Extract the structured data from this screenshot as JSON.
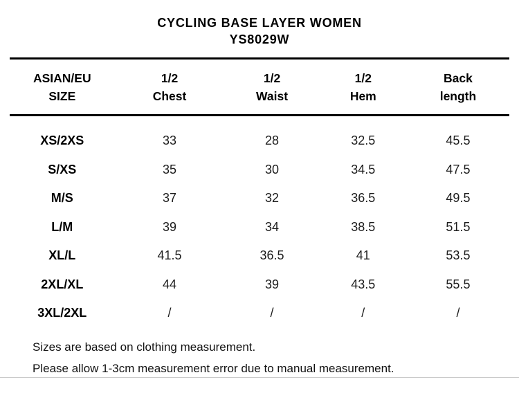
{
  "page": {
    "title": "CYCLING BASE LAYER WOMEN",
    "product_code": "YS8029W"
  },
  "table": {
    "headers": [
      {
        "line1": "ASIAN/EU",
        "line2": "SIZE"
      },
      {
        "line1": "1/2",
        "line2": "Chest"
      },
      {
        "line1": "1/2",
        "line2": "Waist"
      },
      {
        "line1": "1/2",
        "line2": "Hem"
      },
      {
        "line1": "Back",
        "line2": "length"
      }
    ],
    "rows": [
      {
        "size": "XS/2XS",
        "chest": "33",
        "waist": "28",
        "hem": "32.5",
        "back": "45.5"
      },
      {
        "size": "S/XS",
        "chest": "35",
        "waist": "30",
        "hem": "34.5",
        "back": "47.5"
      },
      {
        "size": "M/S",
        "chest": "37",
        "waist": "32",
        "hem": "36.5",
        "back": "49.5"
      },
      {
        "size": "L/M",
        "chest": "39",
        "waist": "34",
        "hem": "38.5",
        "back": "51.5"
      },
      {
        "size": "XL/L",
        "chest": "41.5",
        "waist": "36.5",
        "hem": "41",
        "back": "53.5"
      },
      {
        "size": "2XL/XL",
        "chest": "44",
        "waist": "39",
        "hem": "43.5",
        "back": "55.5"
      },
      {
        "size": "3XL/2XL",
        "chest": "/",
        "waist": "/",
        "hem": "/",
        "back": "/"
      }
    ],
    "notes": [
      "Sizes are based on clothing measurement.",
      "Please allow 1-3cm measurement error due to manual measurement."
    ]
  },
  "colors": {
    "background": "#ffffff",
    "text": "#000000",
    "rule": "#000000",
    "faint_rule": "#c9c9c9"
  }
}
